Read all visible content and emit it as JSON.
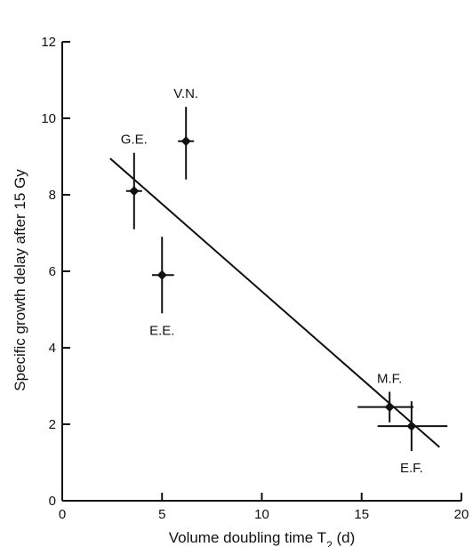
{
  "chart_data": {
    "type": "scatter",
    "title": "",
    "xlabel": "Volume doubling time T",
    "xlabel_subscript": "2",
    "xlabel_suffix": " (d)",
    "ylabel": "Specific growth delay after 15 Gy",
    "xlim": [
      0,
      20
    ],
    "ylim": [
      0,
      12
    ],
    "xticks": [
      "0",
      "5",
      "10",
      "15",
      "20"
    ],
    "yticks": [
      "0",
      "2",
      "4",
      "6",
      "8",
      "10",
      "12"
    ],
    "grid": false,
    "legend": "none",
    "points": [
      {
        "label": "G.E.",
        "x": 3.6,
        "y": 8.1,
        "yerr": [
          7.1,
          9.1
        ],
        "xerr": [
          3.2,
          4.0
        ],
        "label_pos": "above"
      },
      {
        "label": "V.N.",
        "x": 6.2,
        "y": 9.4,
        "yerr": [
          8.4,
          10.3
        ],
        "xerr": [
          5.8,
          6.6
        ],
        "label_pos": "above"
      },
      {
        "label": "E.E.",
        "x": 5.0,
        "y": 5.9,
        "yerr": [
          4.9,
          6.9
        ],
        "xerr": [
          4.5,
          5.6
        ],
        "label_pos": "below"
      },
      {
        "label": "M.F.",
        "x": 16.4,
        "y": 2.45,
        "yerr": [
          2.05,
          2.85
        ],
        "xerr": [
          14.8,
          17.6
        ],
        "label_pos": "above"
      },
      {
        "label": "E.F.",
        "x": 17.5,
        "y": 1.95,
        "yerr": [
          1.3,
          2.6
        ],
        "xerr": [
          15.8,
          19.3
        ],
        "label_pos": "below"
      }
    ],
    "fit_line": {
      "x": [
        2.4,
        18.9
      ],
      "y": [
        8.95,
        1.4
      ]
    }
  }
}
